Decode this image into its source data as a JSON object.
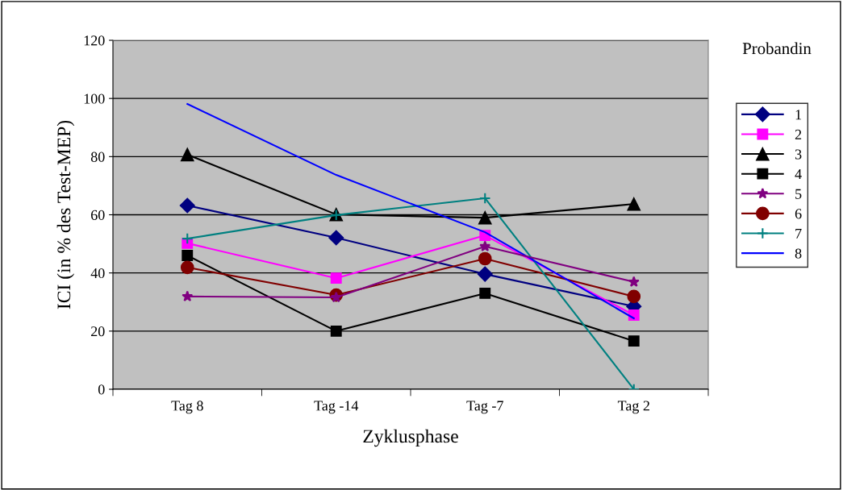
{
  "chart_data": {
    "type": "line",
    "xlabel": "Zyklusphase",
    "ylabel": "ICI (in % des Test-MEP)",
    "legend_title": "Probandin",
    "categories": [
      "Tag 8",
      "Tag -14",
      "Tag -7",
      "Tag 2"
    ],
    "ylim": [
      0,
      120
    ],
    "yticks": [
      0,
      20,
      40,
      60,
      80,
      100,
      120
    ],
    "grid": "y",
    "legend": "right",
    "series": [
      {
        "name": "1",
        "color": "#000080",
        "marker": "diamond",
        "values": [
          63.2,
          52.1,
          39.6,
          28.5
        ]
      },
      {
        "name": "2",
        "color": "#ff00ff",
        "marker": "square",
        "values": [
          50.2,
          38.2,
          52.9,
          25.5
        ]
      },
      {
        "name": "3",
        "color": "#000000",
        "marker": "triangle",
        "values": [
          80.7,
          60.1,
          59.0,
          63.7
        ]
      },
      {
        "name": "4",
        "color": "#000000",
        "marker": "square",
        "values": [
          46.0,
          20.0,
          33.0,
          16.6
        ]
      },
      {
        "name": "5",
        "color": "#800080",
        "marker": "star",
        "values": [
          31.9,
          31.6,
          49.1,
          36.9
        ]
      },
      {
        "name": "6",
        "color": "#800000",
        "marker": "circle",
        "values": [
          41.9,
          32.4,
          44.9,
          31.9
        ]
      },
      {
        "name": "7",
        "color": "#008080",
        "marker": "cross",
        "values": [
          51.8,
          59.9,
          65.7,
          0
        ]
      },
      {
        "name": "8",
        "color": "#0000ff",
        "marker": "none",
        "values": [
          98.1,
          73.7,
          54.0,
          24.4
        ]
      }
    ]
  }
}
